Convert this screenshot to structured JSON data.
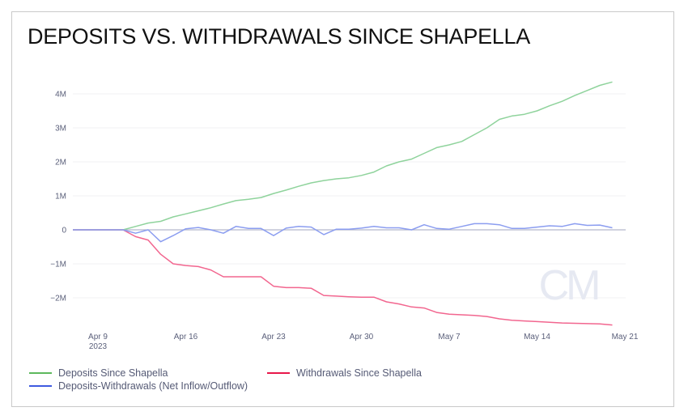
{
  "title": "DEPOSITS VS. WITHDRAWALS SINCE SHAPELLA",
  "watermark": "CM",
  "chart_data": {
    "type": "line",
    "title": "DEPOSITS VS. WITHDRAWALS SINCE SHAPELLA",
    "xlabel": "",
    "ylabel": "",
    "ylim": [
      -2.9,
      4.45
    ],
    "yticks": [
      {
        "v": 4,
        "label": "4M"
      },
      {
        "v": 3,
        "label": "3M"
      },
      {
        "v": 2,
        "label": "2M"
      },
      {
        "v": 1,
        "label": "1M"
      },
      {
        "v": 0,
        "label": "0"
      },
      {
        "v": -1,
        "label": "−1M"
      },
      {
        "v": -2,
        "label": "−2M"
      }
    ],
    "xticks": [
      {
        "day": 2,
        "label": "Apr 9",
        "sub": "2023"
      },
      {
        "day": 9,
        "label": "Apr 16"
      },
      {
        "day": 16,
        "label": "Apr 23"
      },
      {
        "day": 23,
        "label": "Apr 30"
      },
      {
        "day": 30,
        "label": "May 7"
      },
      {
        "day": 37,
        "label": "May 14"
      },
      {
        "day": 44,
        "label": "May 21"
      }
    ],
    "x_start": "2023-04-07",
    "x_unit": "day",
    "legend_placement": "bottom-left",
    "series": [
      {
        "name": "Deposits Since Shapella",
        "color": "#8fd39c",
        "legend_color": "#5cb85c",
        "values": [
          0,
          0,
          0,
          0,
          0,
          0.1,
          0.2,
          0.25,
          0.38,
          0.47,
          0.56,
          0.65,
          0.76,
          0.86,
          0.9,
          0.95,
          1.07,
          1.17,
          1.28,
          1.38,
          1.45,
          1.5,
          1.53,
          1.6,
          1.7,
          1.88,
          2.0,
          2.08,
          2.25,
          2.42,
          2.5,
          2.6,
          2.8,
          3.0,
          3.25,
          3.35,
          3.4,
          3.5,
          3.65,
          3.78,
          3.95,
          4.1,
          4.25,
          4.35
        ]
      },
      {
        "name": "Withdrawals Since Shapella",
        "color": "#f2668f",
        "legend_color": "#e8174a",
        "values": [
          0,
          0,
          0,
          0,
          0,
          -0.2,
          -0.3,
          -0.72,
          -1.0,
          -1.05,
          -1.08,
          -1.18,
          -1.38,
          -1.38,
          -1.38,
          -1.38,
          -1.66,
          -1.7,
          -1.7,
          -1.72,
          -1.93,
          -1.95,
          -1.97,
          -1.98,
          -1.98,
          -2.12,
          -2.18,
          -2.27,
          -2.3,
          -2.43,
          -2.48,
          -2.5,
          -2.52,
          -2.55,
          -2.62,
          -2.66,
          -2.68,
          -2.7,
          -2.72,
          -2.74,
          -2.75,
          -2.76,
          -2.77,
          -2.8
        ]
      },
      {
        "name": "Deposits-Withdrawals (Net Inflow/Outflow)",
        "color": "#8b9df0",
        "legend_color": "#3f5be0",
        "values": [
          0,
          0,
          0,
          0,
          0,
          -0.1,
          0.0,
          -0.35,
          -0.17,
          0.03,
          0.07,
          0.0,
          -0.1,
          0.1,
          0.04,
          0.04,
          -0.17,
          0.05,
          0.1,
          0.08,
          -0.14,
          0.02,
          0.02,
          0.05,
          0.1,
          0.06,
          0.06,
          0.0,
          0.15,
          0.04,
          0.02,
          0.1,
          0.18,
          0.18,
          0.15,
          0.04,
          0.04,
          0.08,
          0.12,
          0.1,
          0.18,
          0.13,
          0.14,
          0.06
        ]
      }
    ]
  }
}
